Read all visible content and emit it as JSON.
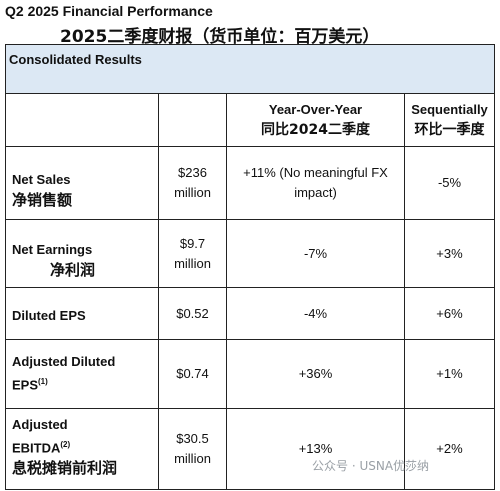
{
  "title_en": "Q2 2025 Financial Performance",
  "title_zh": "2025二季度财报（货币单位：百万美元）",
  "section_header": "Consolidated Results",
  "columns": {
    "yoy_en": "Year-Over-Year",
    "yoy_zh": "同比2024二季度",
    "seq_en": "Sequentially",
    "seq_zh": "环比一季度"
  },
  "rows": [
    {
      "label_en": "Net Sales",
      "label_zh": "净销售额",
      "value_line1": "$236",
      "value_line2": "million",
      "yoy_line1": "+11% (No meaningful FX",
      "yoy_line2": "impact)",
      "seq": "-5%"
    },
    {
      "label_en": "Net Earnings",
      "label_zh": "净利润",
      "value_line1": "$9.7",
      "value_line2": "million",
      "yoy_line1": "-7%",
      "yoy_line2": "",
      "seq": "+3%"
    },
    {
      "label_en": "Diluted EPS",
      "label_zh": "",
      "value_line1": "$0.52",
      "value_line2": "",
      "yoy_line1": "-4%",
      "yoy_line2": "",
      "seq": "+6%"
    },
    {
      "label_en": "Adjusted Diluted",
      "label_en_2": "EPS",
      "footnote": "(1)",
      "label_zh": "",
      "value_line1": "$0.74",
      "value_line2": "",
      "yoy_line1": "+36%",
      "yoy_line2": "",
      "seq": "+1%"
    },
    {
      "label_en": "Adjusted",
      "label_en_2": "EBITDA",
      "footnote": "(2)",
      "label_zh": "息税摊销前利润",
      "value_line1": "$30.5",
      "value_line2": "million",
      "yoy_line1": "+13%",
      "yoy_line2": "",
      "seq": "+2%"
    }
  ],
  "watermark": "公众号 · USNA优莎纳"
}
